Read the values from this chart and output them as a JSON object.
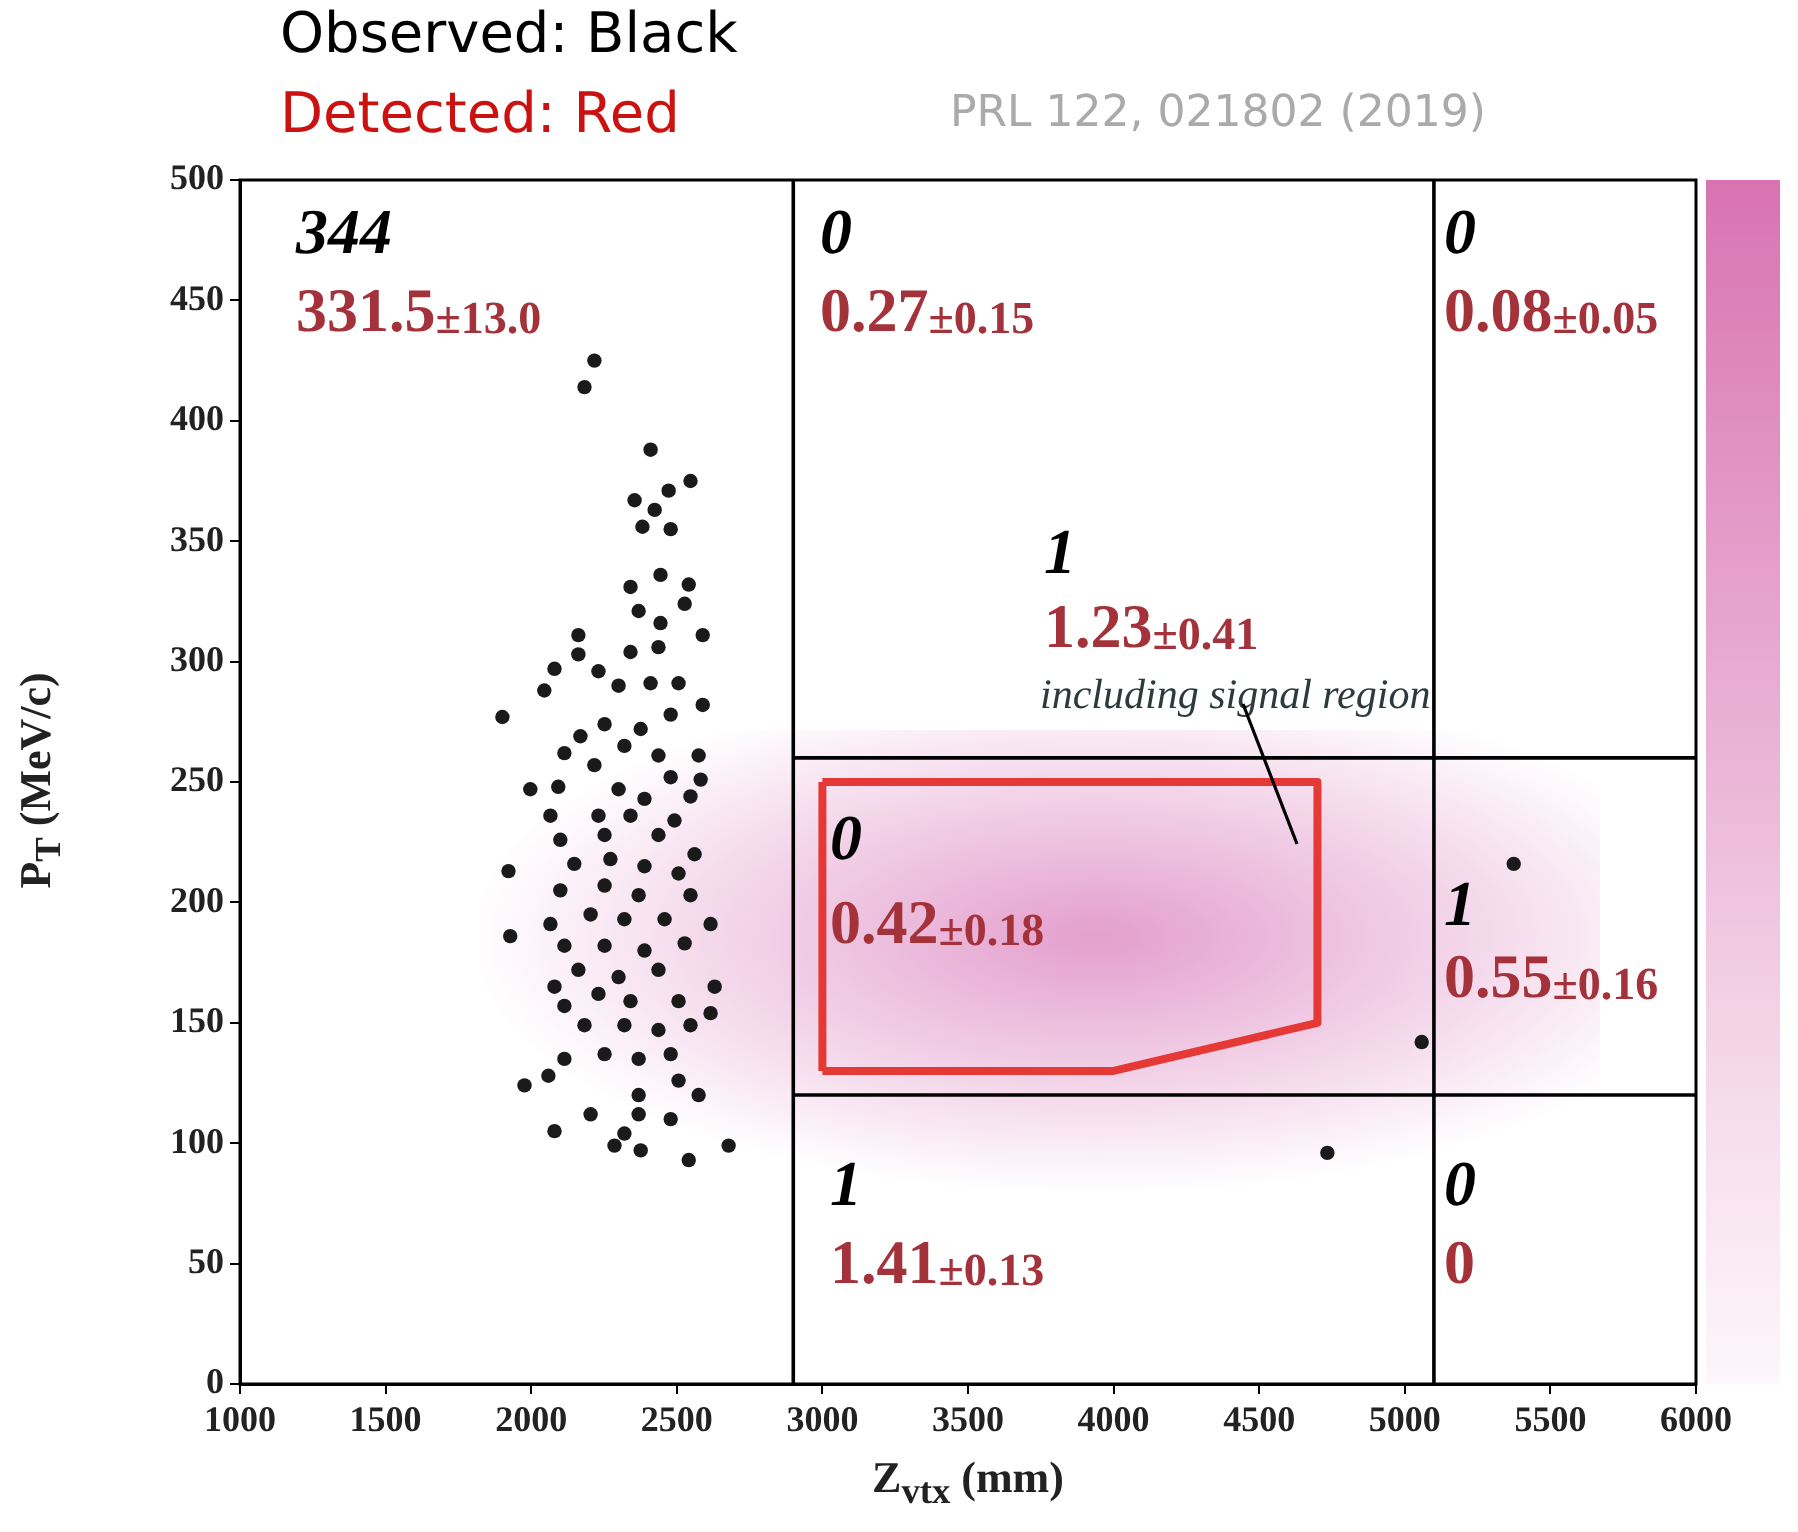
{
  "chart_data": {
    "type": "scatter",
    "title": "Observed: Black",
    "subtitle": "Detected: Red",
    "xlabel": "Z$_{vtx}$ (mm)",
    "ylabel": "P$_{T}$ (MeV/c)",
    "xlim": [
      1000,
      6000
    ],
    "xticks": [
      1000,
      1500,
      2000,
      2500,
      3000,
      3500,
      4000,
      4500,
      5000,
      5500,
      6000
    ],
    "ylim": [
      0,
      500
    ],
    "yticks": [
      0,
      50,
      100,
      150,
      200,
      250,
      300,
      350,
      400,
      450,
      500
    ],
    "ref_lines": [
      {
        "axis": "x",
        "value": 2900,
        "color": "#000000"
      },
      {
        "axis": "x",
        "value": 5100,
        "color": "#000000"
      }
    ],
    "series": [
      {
        "type": "scatter",
        "color": "#1a1a1a",
        "marker": "circle",
        "x": [
          2217,
          2183,
          2410,
          2547,
          2472,
          2355,
          2424,
          2382,
          2479,
          2444,
          2341,
          2541,
          2369,
          2527,
          2444,
          2162,
          2589,
          2437,
          2162,
          2341,
          2080,
          2045,
          2231,
          2300,
          2410,
          2506,
          1901,
          2589,
          2252,
          2376,
          2479,
          2169,
          2114,
          2320,
          2437,
          2575,
          2217,
          2479,
          2582,
          1997,
          2093,
          2300,
          2389,
          2547,
          2066,
          2231,
          2341,
          2492,
          2100,
          2252,
          2437,
          2561,
          2148,
          2272,
          1922,
          2389,
          2506,
          2100,
          2252,
          2369,
          2547,
          1928,
          2066,
          2204,
          2320,
          2458,
          2616,
          2114,
          2252,
          2389,
          2527,
          2162,
          2300,
          2437,
          2630,
          2080,
          2231,
          2341,
          2506,
          2114,
          2616,
          2183,
          2320,
          2437,
          2547,
          2114,
          2252,
          2369,
          2479,
          1977,
          2059,
          2369,
          2506,
          2575,
          2204,
          2369,
          2479,
          2080,
          2320,
          2286,
          2376,
          2541,
          2678,
          5058,
          4734,
          5374
        ],
        "values": [
          425,
          414,
          388,
          375,
          371,
          367,
          363,
          356,
          355,
          336,
          331,
          332,
          321,
          324,
          316,
          311,
          311,
          306,
          303,
          304,
          297,
          288,
          296,
          290,
          291,
          291,
          277,
          282,
          274,
          272,
          278,
          269,
          262,
          265,
          261,
          261,
          257,
          252,
          251,
          247,
          248,
          247,
          243,
          244,
          236,
          236,
          236,
          234,
          226,
          228,
          228,
          220,
          216,
          218,
          213,
          215,
          212,
          205,
          207,
          203,
          203,
          186,
          191,
          195,
          193,
          193,
          191,
          182,
          182,
          180,
          183,
          172,
          169,
          172,
          165,
          165,
          162,
          159,
          159,
          157,
          154,
          149,
          149,
          147,
          149,
          135,
          137,
          135,
          137,
          124,
          128,
          120,
          126,
          120,
          112,
          112,
          110,
          105,
          104,
          99,
          97,
          93,
          99,
          142,
          96,
          216
        ]
      },
      {
        "type": "line",
        "color": "#e53935",
        "marker": "none",
        "line_style": "solid",
        "x": [
          3000,
          4700,
          4700,
          4000,
          3000
        ],
        "values": [
          250,
          250,
          150,
          130,
          130
        ]
      },
      {
        "type": "line",
        "color": "#e53935",
        "marker": "none",
        "line_style": "solid",
        "x": [
          3000,
          3000
        ],
        "values": [
          130,
          250
        ]
      },
      {
        "type": "line",
        "color": "#000000",
        "marker": "none",
        "line_style": "solid",
        "x": [
          2900,
          6000
        ],
        "values": [
          260,
          260
        ]
      },
      {
        "type": "line",
        "color": "#000000",
        "marker": "none",
        "line_style": "solid",
        "x": [
          2900,
          6000
        ],
        "values": [
          120,
          120
        ]
      }
    ],
    "annotations": [
      "PRL 122, 021802 (2019)",
      "344",
      "331.5±13.0",
      "0",
      "0.27±0.15",
      "0",
      "0.08±0.05",
      "1",
      "1.23±0.41",
      "0",
      "0.42±0.18",
      "1",
      "0.55±0.16",
      "1",
      "1.41±0.13",
      "0",
      "0",
      "including signal region"
    ]
  }
}
